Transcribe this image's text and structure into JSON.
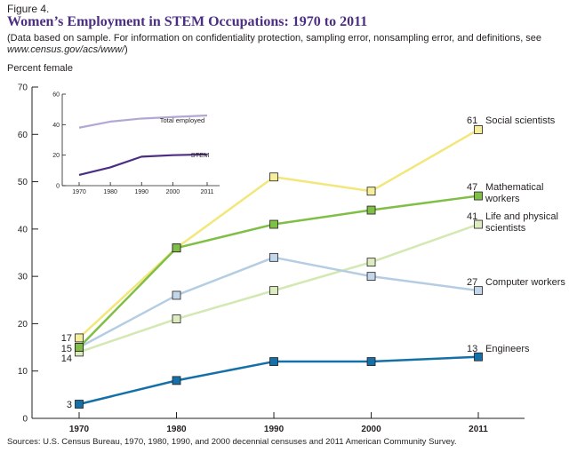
{
  "figure_label": "Figure 4.",
  "title": "Women’s Employment in STEM Occupations: 1970 to 2011",
  "note_prefix": "(Data based on sample. For information on confidentiality protection, sampling error, nonsampling error, and definitions, see ",
  "note_url": "www.census.gov/acs/www/",
  "note_suffix": ")",
  "source": "Sources: U.S. Census Bureau, 1970, 1980, 1990, and 2000 decennial censuses and 2011 American Community Survey.",
  "chart_data": [
    {
      "type": "line",
      "title": "",
      "ylabel": "Percent female",
      "xlabel": "",
      "x": [
        1970,
        1980,
        1990,
        2000,
        2011
      ],
      "ylim": [
        0,
        70
      ],
      "yticks": [
        0,
        10,
        20,
        30,
        40,
        50,
        60,
        70
      ],
      "series": [
        {
          "name": "Social scientists",
          "label_lines": [
            "Social scientists"
          ],
          "end_label": "61",
          "start_label": "17",
          "color": "#f2e77a",
          "marker_fill": "#f5ee9a",
          "values": [
            17,
            36,
            51,
            48,
            61
          ]
        },
        {
          "name": "Mathematical workers",
          "label_lines": [
            "Mathematical",
            "workers"
          ],
          "end_label": "47",
          "start_label": "",
          "color": "#7fbf45",
          "marker_fill": "#7fbf45",
          "values": [
            15,
            36,
            41,
            44,
            47
          ]
        },
        {
          "name": "Life and physical scientists",
          "label_lines": [
            "Life and physical",
            "scientists"
          ],
          "end_label": "41",
          "start_label": "14",
          "color": "#d3e8b2",
          "marker_fill": "#dcecc0",
          "values": [
            14,
            21,
            27,
            33,
            41
          ]
        },
        {
          "name": "Computer workers",
          "label_lines": [
            "Computer workers"
          ],
          "end_label": "27",
          "start_label": "15",
          "color": "#b5cde3",
          "marker_fill": "#c3d6ea",
          "values": [
            15,
            26,
            34,
            30,
            27
          ]
        },
        {
          "name": "Engineers",
          "label_lines": [
            "Engineers"
          ],
          "end_label": "13",
          "start_label": "3",
          "color": "#1670a8",
          "marker_fill": "#1670a8",
          "values": [
            3,
            8,
            12,
            12,
            13
          ]
        }
      ]
    },
    {
      "type": "line",
      "title": "",
      "x": [
        1970,
        1980,
        1990,
        2000,
        2011
      ],
      "ylim": [
        0,
        60
      ],
      "yticks": [
        0,
        20,
        40,
        60
      ],
      "series": [
        {
          "name": "Total employed",
          "color": "#b3a8d3",
          "values": [
            38,
            42,
            44,
            45,
            46
          ]
        },
        {
          "name": "STEM",
          "color": "#4b2e83",
          "values": [
            7,
            12,
            19,
            20,
            20.5
          ]
        }
      ]
    }
  ]
}
